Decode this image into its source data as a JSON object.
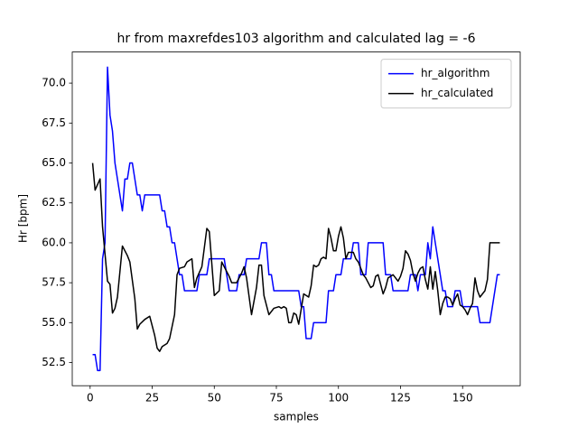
{
  "chart_data": {
    "type": "line",
    "title": "hr from maxrefdes103 algorithm and calculated lag = -6",
    "x_label": "samples",
    "y_label": "Hr [bpm]",
    "x": [
      1,
      2,
      3,
      4,
      5,
      6,
      7,
      8,
      9,
      10,
      11,
      12,
      13,
      14,
      15,
      16,
      17,
      18,
      19,
      20,
      21,
      22,
      23,
      24,
      25,
      26,
      27,
      28,
      29,
      30,
      31,
      32,
      33,
      34,
      35,
      36,
      37,
      38,
      39,
      40,
      41,
      42,
      43,
      44,
      45,
      46,
      47,
      48,
      49,
      50,
      51,
      52,
      53,
      54,
      55,
      56,
      57,
      58,
      59,
      60,
      61,
      62,
      63,
      64,
      65,
      66,
      67,
      68,
      69,
      70,
      71,
      72,
      73,
      74,
      75,
      76,
      77,
      78,
      79,
      80,
      81,
      82,
      83,
      84,
      85,
      86,
      87,
      88,
      89,
      90,
      91,
      92,
      93,
      94,
      95,
      96,
      97,
      98,
      99,
      100,
      101,
      102,
      103,
      104,
      105,
      106,
      107,
      108,
      109,
      110,
      111,
      112,
      113,
      114,
      115,
      116,
      117,
      118,
      119,
      120,
      121,
      122,
      123,
      124,
      125,
      126,
      127,
      128,
      129,
      130,
      131,
      132,
      133,
      134,
      135,
      136,
      137,
      138,
      139,
      140,
      141,
      142,
      143,
      144,
      145,
      146,
      147,
      148,
      149,
      150,
      151,
      152,
      153,
      154,
      155,
      156,
      157,
      158,
      159,
      160,
      161,
      162,
      163,
      164,
      165
    ],
    "series": [
      {
        "name": "hr_algorithm",
        "color": "#0000ff",
        "values": [
          53,
          53,
          52,
          52,
          59,
          60,
          71,
          68,
          67,
          65,
          64,
          63,
          62,
          64,
          64,
          65,
          65,
          64,
          63,
          63,
          62,
          63,
          63,
          63,
          63,
          63,
          63,
          63,
          62,
          62,
          61,
          61,
          60,
          60,
          59,
          58,
          58,
          57,
          57,
          57,
          57,
          57,
          57,
          58,
          58,
          58,
          58,
          59,
          59,
          59,
          59,
          59,
          59,
          59,
          58,
          57,
          57,
          57,
          57,
          58,
          58,
          58,
          59,
          59,
          59,
          59,
          59,
          59,
          60,
          60,
          60,
          58,
          58,
          57,
          57,
          57,
          57,
          57,
          57,
          57,
          57,
          57,
          57,
          57,
          56,
          56,
          54,
          54,
          54,
          55,
          55,
          55,
          55,
          55,
          55,
          57,
          57,
          57,
          58,
          58,
          58,
          59,
          59,
          59,
          59,
          60,
          60,
          60,
          58,
          58,
          58,
          60,
          60,
          60,
          60,
          60,
          60,
          60,
          58,
          58,
          58,
          57,
          57,
          57,
          57,
          57,
          57,
          57,
          58,
          58,
          58,
          57,
          58,
          58,
          58,
          60,
          59,
          61,
          60,
          59,
          58,
          57,
          57,
          56,
          56,
          56,
          57,
          57,
          57,
          56,
          56,
          56,
          56,
          56,
          56,
          56,
          55,
          55,
          55,
          55,
          55,
          56,
          57,
          58,
          58
        ]
      },
      {
        "name": "hr_calculated",
        "color": "#000000",
        "x": [
          1,
          2,
          4,
          5,
          7,
          8,
          9,
          10,
          11,
          13,
          15,
          16,
          18,
          19,
          20,
          22,
          24,
          26,
          27,
          28,
          29,
          31,
          32,
          34,
          35,
          36,
          38,
          39,
          41,
          42,
          43,
          45,
          47,
          48,
          50,
          52,
          53,
          54,
          56,
          57,
          59,
          61,
          62,
          63,
          65,
          67,
          68,
          69,
          70,
          72,
          74,
          76,
          77,
          78,
          79,
          80,
          81,
          82,
          83,
          84,
          86,
          87,
          88,
          89,
          90,
          91,
          92,
          93,
          94,
          95,
          96,
          97,
          98,
          99,
          100,
          101,
          102,
          103,
          104,
          106,
          107,
          108,
          110,
          111,
          113,
          114,
          115,
          116,
          117,
          118,
          119,
          120,
          122,
          123,
          124,
          125,
          126,
          127,
          128,
          129,
          130,
          131,
          132,
          133,
          134,
          135,
          136,
          137,
          138,
          139,
          140,
          141,
          142,
          143,
          144,
          145,
          146,
          147,
          148,
          149,
          150,
          151,
          152,
          153,
          154,
          155,
          156,
          157,
          158,
          159,
          160,
          161,
          165
        ],
        "values": [
          65,
          63.3,
          64,
          61,
          57.6,
          57.4,
          55.6,
          55.9,
          56.6,
          59.8,
          59.2,
          58.8,
          56.5,
          54.6,
          54.9,
          55.2,
          55.4,
          54.2,
          53.4,
          53.2,
          53.5,
          53.7,
          54,
          55.5,
          58,
          58.4,
          58.5,
          58.8,
          59,
          57.2,
          57.8,
          58.5,
          60.9,
          60.7,
          56.7,
          57,
          58.8,
          58.5,
          57.9,
          57.5,
          57.5,
          58.1,
          58.5,
          57.8,
          55.5,
          57.2,
          58.6,
          58.6,
          56.7,
          55.5,
          55.9,
          56,
          55.9,
          56,
          55.9,
          55,
          55,
          55.6,
          55.5,
          54.9,
          56.8,
          56.7,
          56.6,
          57.3,
          58.6,
          58.5,
          58.6,
          59,
          59.1,
          59,
          60.9,
          60.3,
          59.5,
          59.5,
          60.4,
          61,
          60.3,
          59,
          59.4,
          59.4,
          59,
          58.8,
          58,
          57.8,
          57.2,
          57.3,
          57.9,
          58,
          57.4,
          56.8,
          57.2,
          57.8,
          58,
          57.8,
          57.6,
          57.9,
          58.4,
          59.5,
          59.3,
          58.9,
          58.1,
          57.6,
          58.1,
          58.4,
          58.5,
          57.7,
          57.1,
          58.5,
          57.1,
          58.2,
          57,
          55.5,
          56.2,
          56.6,
          56.6,
          56.5,
          56.1,
          56.5,
          56.8,
          56.1,
          56,
          55.8,
          55.5,
          55.9,
          56.2,
          57.8,
          57,
          56.6,
          56.8,
          57,
          57.7,
          60,
          60
        ]
      }
    ],
    "xlim": [
      -7.2,
      173.2
    ],
    "ylim": [
      51.05,
      71.95
    ],
    "xticks": [
      0,
      25,
      50,
      75,
      100,
      125,
      150
    ],
    "yticks": [
      52.5,
      {
        "value": 55,
        "label": "55.0"
      },
      57.5,
      {
        "value": 60,
        "label": "60.0"
      },
      62.5,
      {
        "value": 65,
        "label": "65.0"
      },
      67.5,
      {
        "value": 70,
        "label": "70.0"
      }
    ],
    "legend": "upper right"
  }
}
